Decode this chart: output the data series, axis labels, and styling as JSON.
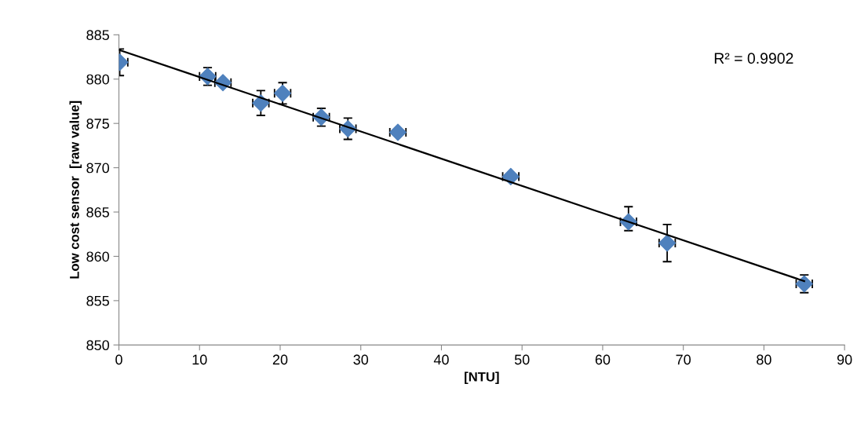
{
  "chart_data": {
    "type": "scatter",
    "xlabel": "[NTU]",
    "ylabel": "Low cost sensor  [raw value]",
    "xlim": [
      0,
      90
    ],
    "xticks": [
      0,
      10,
      20,
      30,
      40,
      50,
      60,
      70,
      80,
      90
    ],
    "ylim": [
      850,
      885
    ],
    "yticks": [
      850,
      855,
      860,
      865,
      870,
      875,
      880,
      885
    ],
    "grid": false,
    "annotations": [
      "R² = 0.9902"
    ],
    "series": [
      {
        "marker": "diamond",
        "color": "#4f81bd",
        "x": [
          0.1,
          11.0,
          12.9,
          17.6,
          20.3,
          25.1,
          28.4,
          34.6,
          48.6,
          63.2,
          68.0,
          85.0
        ],
        "values": [
          881.9,
          880.3,
          879.6,
          877.3,
          878.4,
          875.7,
          874.4,
          874.0,
          869.0,
          863.9,
          861.5,
          856.9
        ],
        "errors": [
          1.5,
          1.0,
          null,
          1.4,
          1.2,
          1.0,
          1.2,
          null,
          null,
          [
            862.9,
            865.6
          ],
          2.1,
          1.0
        ],
        "xerrors": [
          1.0,
          1.0,
          1.0,
          1.0,
          1.0,
          1.0,
          1.0,
          1.0,
          1.0,
          1.0,
          1.0,
          1.0
        ]
      },
      {
        "type": "line",
        "color": "#000000",
        "x": [
          0,
          85
        ],
        "values": [
          883.3,
          857.2
        ]
      }
    ]
  }
}
